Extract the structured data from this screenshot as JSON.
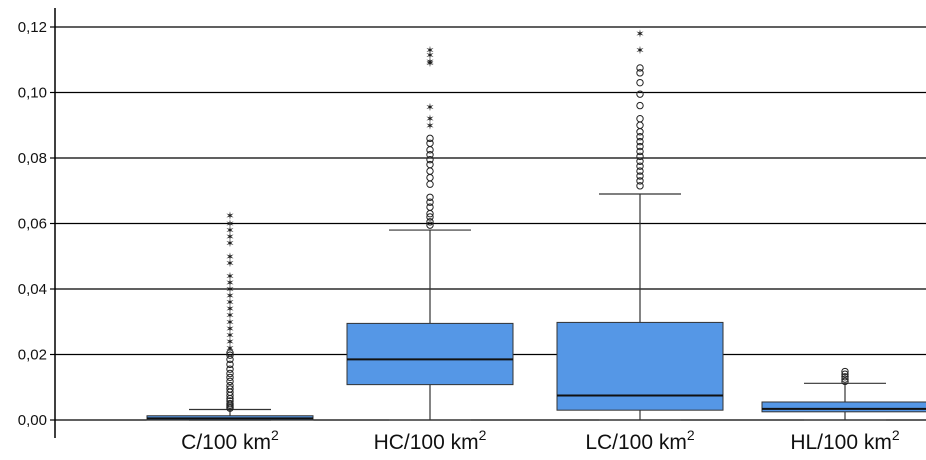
{
  "chart_data": {
    "type": "box",
    "title": "",
    "xlabel": "",
    "ylabel": "",
    "ylim": [
      0,
      0.12
    ],
    "yticks": [
      "0,00",
      "0,02",
      "0,04",
      "0,06",
      "0,08",
      "0,10",
      "0,12"
    ],
    "ytick_values": [
      0,
      0.02,
      0.04,
      0.06,
      0.08,
      0.1,
      0.12
    ],
    "grid": "horizontal",
    "colors": {
      "box_fill": "#5597e6",
      "box_stroke": "#333333",
      "median": "#111111",
      "grid": "#000000"
    },
    "categories": [
      {
        "label": "C/100 km",
        "sup": "2"
      },
      {
        "label": "HC/100 km",
        "sup": "2"
      },
      {
        "label": "LC/100 km",
        "sup": "2"
      },
      {
        "label": "HL/100 km",
        "sup": "2"
      }
    ],
    "boxes": [
      {
        "whisker_low": 0.0,
        "q1": 0.0,
        "median": 0.0005,
        "q3": 0.0013,
        "whisker_high": 0.0032,
        "outliers": [
          0.0036,
          0.004,
          0.0045,
          0.005,
          0.0058,
          0.0065,
          0.0075,
          0.0085,
          0.0095,
          0.0105,
          0.0118,
          0.013,
          0.0142,
          0.0155,
          0.017,
          0.0185,
          0.0198,
          0.0205
        ],
        "extremes": [
          0.022,
          0.024,
          0.026,
          0.028,
          0.03,
          0.032,
          0.034,
          0.036,
          0.038,
          0.04,
          0.042,
          0.044,
          0.048,
          0.05,
          0.054,
          0.056,
          0.058,
          0.06,
          0.0625
        ]
      },
      {
        "whisker_low": 0.0,
        "q1": 0.0108,
        "median": 0.0185,
        "q3": 0.0295,
        "whisker_high": 0.058,
        "outliers": [
          0.0595,
          0.0605,
          0.062,
          0.063,
          0.065,
          0.0665,
          0.068,
          0.072,
          0.074,
          0.076,
          0.078,
          0.0795,
          0.081,
          0.0825,
          0.0845,
          0.086
        ],
        "extremes": [
          0.09,
          0.092,
          0.0955,
          0.109,
          0.1095,
          0.1115,
          0.113
        ]
      },
      {
        "whisker_low": 0.0,
        "q1": 0.003,
        "median": 0.0075,
        "q3": 0.0298,
        "whisker_high": 0.069,
        "outliers": [
          0.0715,
          0.073,
          0.0745,
          0.076,
          0.0775,
          0.079,
          0.0805,
          0.082,
          0.0835,
          0.085,
          0.0865,
          0.088,
          0.09,
          0.092,
          0.096,
          0.0995,
          0.103,
          0.106,
          0.1075
        ],
        "extremes": [
          0.113,
          0.118
        ]
      },
      {
        "whisker_low": 0.0,
        "q1": 0.0025,
        "median": 0.0034,
        "q3": 0.0055,
        "whisker_high": 0.0112,
        "outliers": [
          0.0118,
          0.0125,
          0.0132,
          0.014,
          0.0148
        ],
        "extremes": []
      }
    ]
  }
}
